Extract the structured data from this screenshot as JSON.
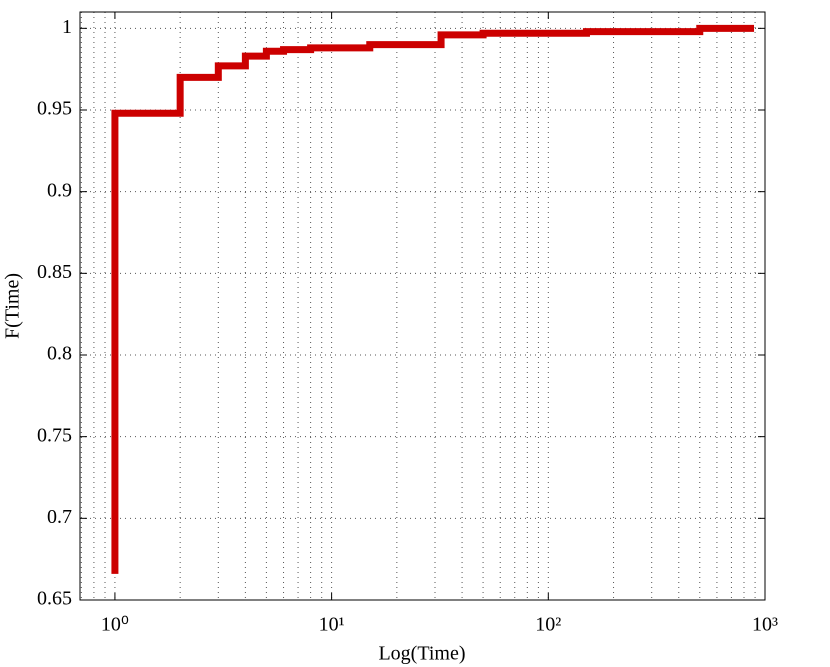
{
  "chart_data": {
    "type": "line",
    "step": true,
    "x_label": "Log(Time)",
    "y_label": "F(Time)",
    "x": [
      1,
      1,
      2,
      2,
      3,
      3,
      4,
      4,
      5,
      5,
      6,
      6,
      8,
      8,
      15,
      15,
      32,
      32,
      50,
      50,
      150,
      150,
      500,
      500,
      890
    ],
    "series": [
      {
        "color": "#cc0000",
        "values": [
          0.666,
          0.948,
          0.948,
          0.97,
          0.97,
          0.977,
          0.977,
          0.983,
          0.983,
          0.986,
          0.986,
          0.987,
          0.987,
          0.988,
          0.988,
          0.99,
          0.99,
          0.996,
          0.996,
          0.997,
          0.997,
          0.998,
          0.998,
          1.0,
          1.0
        ]
      }
    ],
    "xlog": true,
    "xlim": [
      0.69,
      1000
    ],
    "ylim": [
      0.65,
      1.01
    ],
    "xticks": [
      {
        "value": 1,
        "label": "10⁰"
      },
      {
        "value": 10,
        "label": "10¹"
      },
      {
        "value": 100,
        "label": "10²"
      },
      {
        "value": 1000,
        "label": "10³"
      }
    ],
    "xminorticks": [
      0.7,
      0.8,
      0.9,
      2,
      3,
      4,
      5,
      6,
      7,
      8,
      9,
      20,
      30,
      40,
      50,
      60,
      70,
      80,
      90,
      200,
      300,
      400,
      500,
      600,
      700,
      800,
      900
    ],
    "yticks": [
      0.65,
      0.7,
      0.75,
      0.8,
      0.85,
      0.9,
      0.95,
      1
    ],
    "grid": true
  }
}
